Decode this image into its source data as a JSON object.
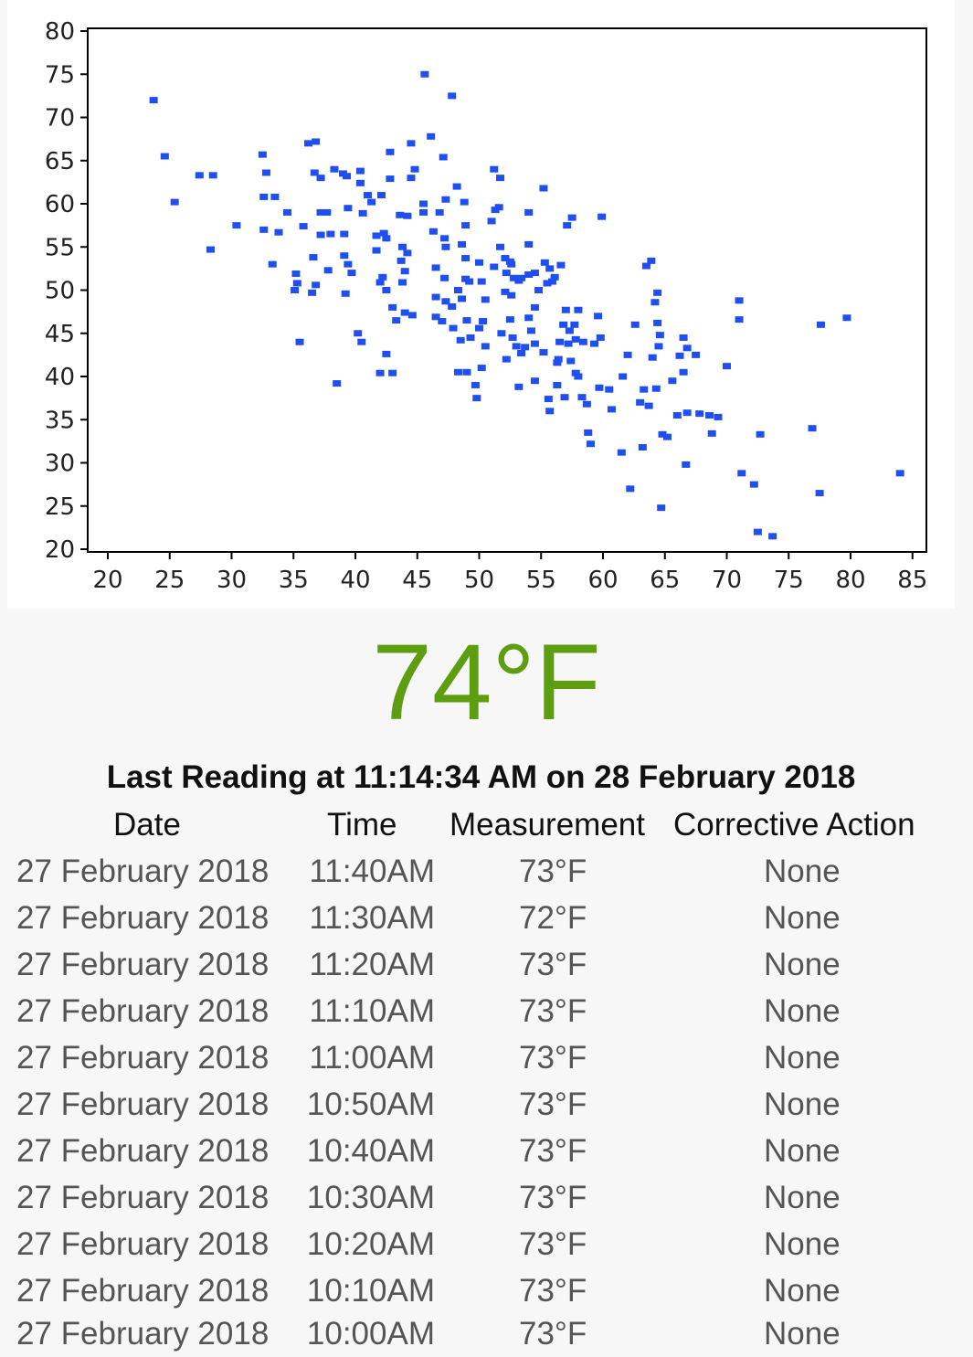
{
  "chart_data": {
    "type": "scatter",
    "xlim": [
      20,
      85
    ],
    "ylim": [
      20,
      80
    ],
    "x_ticks": [
      20,
      25,
      30,
      35,
      40,
      45,
      50,
      55,
      60,
      65,
      70,
      75,
      80,
      85
    ],
    "y_ticks": [
      20,
      25,
      30,
      35,
      40,
      45,
      50,
      55,
      60,
      65,
      70,
      75,
      80
    ],
    "point_color": "#1f4ff0",
    "grid": false,
    "points": [
      [
        23.7,
        72
      ],
      [
        24.6,
        65.5
      ],
      [
        25.4,
        60.2
      ],
      [
        27.4,
        63.3
      ],
      [
        28.5,
        63.3
      ],
      [
        28.3,
        54.7
      ],
      [
        30.4,
        57.5
      ],
      [
        32.5,
        65.7
      ],
      [
        32.8,
        63.6
      ],
      [
        32.6,
        60.8
      ],
      [
        33.5,
        60.8
      ],
      [
        34.5,
        59
      ],
      [
        32.6,
        57
      ],
      [
        33.8,
        56.7
      ],
      [
        33.3,
        53
      ],
      [
        35.2,
        51.9
      ],
      [
        35.3,
        50.8
      ],
      [
        35.1,
        50
      ],
      [
        35.5,
        44
      ],
      [
        35.8,
        57.4
      ],
      [
        36.2,
        67
      ],
      [
        36.8,
        67.2
      ],
      [
        36.7,
        63.6
      ],
      [
        37.2,
        63
      ],
      [
        37.2,
        59
      ],
      [
        37.7,
        59
      ],
      [
        37.2,
        56.4
      ],
      [
        38,
        56.5
      ],
      [
        36.6,
        53.8
      ],
      [
        37.8,
        52.3
      ],
      [
        36.8,
        50.6
      ],
      [
        36.5,
        49.7
      ],
      [
        38.3,
        64
      ],
      [
        39,
        63.5
      ],
      [
        39.3,
        63.2
      ],
      [
        39.4,
        59.5
      ],
      [
        39.1,
        56.5
      ],
      [
        39.1,
        54
      ],
      [
        39.4,
        53
      ],
      [
        39.7,
        52
      ],
      [
        39.2,
        49.6
      ],
      [
        40.2,
        45
      ],
      [
        40.5,
        44
      ],
      [
        38.5,
        39.2
      ],
      [
        40.4,
        63.8
      ],
      [
        40.4,
        62.4
      ],
      [
        41,
        61
      ],
      [
        40.6,
        58.9
      ],
      [
        41.3,
        60.2
      ],
      [
        42.1,
        61
      ],
      [
        42.3,
        56.6
      ],
      [
        41.7,
        56.3
      ],
      [
        42.5,
        56
      ],
      [
        41.7,
        54.6
      ],
      [
        42.2,
        51.5
      ],
      [
        42,
        50.9
      ],
      [
        42.5,
        50
      ],
      [
        43,
        48
      ],
      [
        43.3,
        46.5
      ],
      [
        42.5,
        42.6
      ],
      [
        42,
        40.4
      ],
      [
        43,
        40.4
      ],
      [
        42.8,
        66
      ],
      [
        42.8,
        62.9
      ],
      [
        43.6,
        58.7
      ],
      [
        44.2,
        58.6
      ],
      [
        43.8,
        55
      ],
      [
        44.2,
        54.3
      ],
      [
        43.7,
        53.4
      ],
      [
        44,
        52.2
      ],
      [
        43.8,
        50.9
      ],
      [
        44,
        47.4
      ],
      [
        44.6,
        47.1
      ],
      [
        44.5,
        67
      ],
      [
        44.8,
        64
      ],
      [
        44.5,
        63
      ],
      [
        45.5,
        60
      ],
      [
        45.5,
        59
      ],
      [
        45.6,
        75
      ],
      [
        46.1,
        67.8
      ],
      [
        46.8,
        59
      ],
      [
        46.3,
        56.8
      ],
      [
        47.2,
        56
      ],
      [
        47.3,
        55
      ],
      [
        46.5,
        52.6
      ],
      [
        47.2,
        51.4
      ],
      [
        46.5,
        49.2
      ],
      [
        47.3,
        48.7
      ],
      [
        47.8,
        48.1
      ],
      [
        46.5,
        46.9
      ],
      [
        47,
        46.4
      ],
      [
        47.9,
        45.6
      ],
      [
        47.8,
        72.5
      ],
      [
        47.1,
        65.4
      ],
      [
        47.3,
        60.5
      ],
      [
        48.2,
        62
      ],
      [
        48.8,
        60.2
      ],
      [
        48.9,
        57.5
      ],
      [
        48.6,
        55.3
      ],
      [
        48.9,
        53.7
      ],
      [
        48.9,
        51.3
      ],
      [
        49.2,
        51
      ],
      [
        48.3,
        50
      ],
      [
        48.6,
        49
      ],
      [
        49,
        46.5
      ],
      [
        48.5,
        44.2
      ],
      [
        49.3,
        44.5
      ],
      [
        48.3,
        40.5
      ],
      [
        49,
        40.5
      ],
      [
        49.7,
        39
      ],
      [
        49.8,
        37.5
      ],
      [
        50,
        53.2
      ],
      [
        50.2,
        51
      ],
      [
        50.5,
        48.9
      ],
      [
        50.3,
        46.4
      ],
      [
        50,
        45.6
      ],
      [
        50.5,
        43.5
      ],
      [
        50.2,
        41
      ],
      [
        51,
        58
      ],
      [
        51.2,
        64
      ],
      [
        51.7,
        63
      ],
      [
        51.6,
        59.6
      ],
      [
        51.3,
        59.3
      ],
      [
        51.7,
        55
      ],
      [
        51.2,
        52.7
      ],
      [
        52.1,
        53.7
      ],
      [
        52.5,
        53.3
      ],
      [
        52.6,
        53
      ],
      [
        52.2,
        52
      ],
      [
        52.8,
        51.4
      ],
      [
        53.2,
        51.1
      ],
      [
        53.4,
        51.4
      ],
      [
        54,
        51.8
      ],
      [
        52.1,
        49.8
      ],
      [
        52.6,
        49.4
      ],
      [
        52.5,
        46.6
      ],
      [
        51.8,
        45
      ],
      [
        52.7,
        44.5
      ],
      [
        53,
        43.5
      ],
      [
        53.4,
        42.7
      ],
      [
        53.7,
        43.4
      ],
      [
        52.2,
        42
      ],
      [
        53.2,
        38.8
      ],
      [
        54,
        59
      ],
      [
        54,
        55.3
      ],
      [
        54.5,
        52
      ],
      [
        54.8,
        50
      ],
      [
        54,
        46.8
      ],
      [
        54.5,
        48
      ],
      [
        54.2,
        45.3
      ],
      [
        54.5,
        43.8
      ],
      [
        54.5,
        39.5
      ],
      [
        55.2,
        61.8
      ],
      [
        55.3,
        53.2
      ],
      [
        55.7,
        52.5
      ],
      [
        56.1,
        51.5
      ],
      [
        55.9,
        51
      ],
      [
        55.5,
        50.8
      ],
      [
        55.2,
        42.8
      ],
      [
        55.6,
        37.4
      ],
      [
        56.3,
        41.6
      ],
      [
        55.7,
        36
      ],
      [
        56.6,
        52.9
      ],
      [
        56.8,
        46
      ],
      [
        56.5,
        44
      ],
      [
        57.2,
        43.8
      ],
      [
        56.4,
        42
      ],
      [
        56.3,
        39
      ],
      [
        56.9,
        37.6
      ],
      [
        57.1,
        57.5
      ],
      [
        57.5,
        58.4
      ],
      [
        57,
        47.7
      ],
      [
        57.7,
        46
      ],
      [
        57.3,
        45.3
      ],
      [
        58,
        47.7
      ],
      [
        57.8,
        44.3
      ],
      [
        58.4,
        44
      ],
      [
        57.4,
        41.8
      ],
      [
        57.8,
        40.4
      ],
      [
        58.3,
        37.6
      ],
      [
        58.7,
        36.8
      ],
      [
        58,
        40
      ],
      [
        58.8,
        33.5
      ],
      [
        59,
        32.2
      ],
      [
        59.9,
        58.5
      ],
      [
        59.6,
        47
      ],
      [
        59.8,
        44.5
      ],
      [
        59.3,
        43.8
      ],
      [
        59.7,
        38.7
      ],
      [
        60.5,
        38.5
      ],
      [
        60.7,
        36.2
      ],
      [
        61.6,
        40
      ],
      [
        62,
        42.5
      ],
      [
        62.6,
        46
      ],
      [
        61.5,
        31.2
      ],
      [
        62.2,
        27
      ],
      [
        63.2,
        31.8
      ],
      [
        63.5,
        52.8
      ],
      [
        63.9,
        53.4
      ],
      [
        64.4,
        49.7
      ],
      [
        64.2,
        48.6
      ],
      [
        64.4,
        46.2
      ],
      [
        64.6,
        44.8
      ],
      [
        64.5,
        43.5
      ],
      [
        64,
        42.2
      ],
      [
        63.3,
        38.5
      ],
      [
        64.3,
        38.6
      ],
      [
        63,
        37
      ],
      [
        63.7,
        36.6
      ],
      [
        64.8,
        33.3
      ],
      [
        65.2,
        33
      ],
      [
        64.7,
        24.8
      ],
      [
        66.5,
        44.5
      ],
      [
        66.8,
        43.3
      ],
      [
        66.2,
        42.4
      ],
      [
        67.5,
        42.5
      ],
      [
        66.5,
        40.5
      ],
      [
        65.6,
        39.5
      ],
      [
        66,
        35.5
      ],
      [
        66.8,
        35.8
      ],
      [
        67.8,
        35.7
      ],
      [
        68.6,
        35.5
      ],
      [
        69.3,
        35.3
      ],
      [
        68.8,
        33.4
      ],
      [
        66.7,
        29.8
      ],
      [
        70,
        41.2
      ],
      [
        71,
        48.8
      ],
      [
        71,
        46.6
      ],
      [
        71.2,
        28.8
      ],
      [
        72.2,
        27.5
      ],
      [
        72.7,
        33.3
      ],
      [
        72.5,
        22
      ],
      [
        73.7,
        21.5
      ],
      [
        76.9,
        34
      ],
      [
        77.5,
        26.5
      ],
      [
        77.6,
        46
      ],
      [
        79.7,
        46.8
      ],
      [
        84,
        28.8
      ]
    ]
  },
  "current_temperature": "74°F",
  "last_reading": "Last Reading at 11:14:34 AM on 28 February 2018",
  "table": {
    "headers": {
      "date": "Date",
      "time": "Time",
      "measurement": "Measurement",
      "action": "Corrective Action"
    },
    "rows": [
      {
        "date": "27 February 2018",
        "time": "11:40AM",
        "measurement": "73°F",
        "action": "None"
      },
      {
        "date": "27 February 2018",
        "time": "11:30AM",
        "measurement": "72°F",
        "action": "None"
      },
      {
        "date": "27 February 2018",
        "time": "11:20AM",
        "measurement": "73°F",
        "action": "None"
      },
      {
        "date": "27 February 2018",
        "time": "11:10AM",
        "measurement": "73°F",
        "action": "None"
      },
      {
        "date": "27 February 2018",
        "time": "11:00AM",
        "measurement": "73°F",
        "action": "None"
      },
      {
        "date": "27 February 2018",
        "time": "10:50AM",
        "measurement": "73°F",
        "action": "None"
      },
      {
        "date": "27 February 2018",
        "time": "10:40AM",
        "measurement": "73°F",
        "action": "None"
      },
      {
        "date": "27 February 2018",
        "time": "10:30AM",
        "measurement": "73°F",
        "action": "None"
      },
      {
        "date": "27 February 2018",
        "time": "10:20AM",
        "measurement": "73°F",
        "action": "None"
      },
      {
        "date": "27 February 2018",
        "time": "10:10AM",
        "measurement": "73°F",
        "action": "None"
      },
      {
        "date": "27 February 2018",
        "time": "10:00AM",
        "measurement": "73°F",
        "action": "None"
      }
    ]
  }
}
